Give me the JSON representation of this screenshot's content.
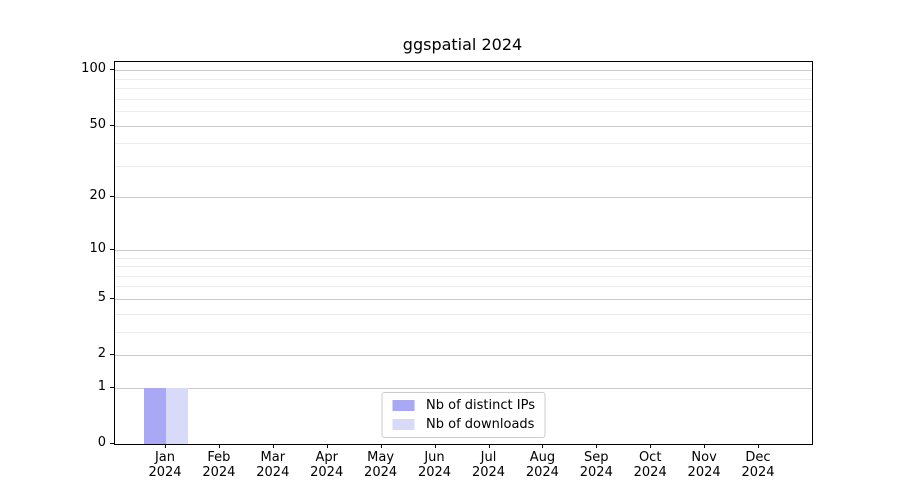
{
  "title": "ggspatial 2024",
  "chart_data": {
    "type": "bar",
    "title": "ggspatial 2024",
    "categories": [
      "Jan",
      "Feb",
      "Mar",
      "Apr",
      "May",
      "Jun",
      "Jul",
      "Aug",
      "Sep",
      "Oct",
      "Nov",
      "Dec"
    ],
    "x_year_label": "2024",
    "series": [
      {
        "name": "Nb of distinct IPs",
        "color": "#a8a8f5",
        "values": [
          1,
          0,
          0,
          0,
          0,
          0,
          0,
          0,
          0,
          0,
          0,
          0
        ]
      },
      {
        "name": "Nb of downloads",
        "color": "#d9d9f9",
        "values": [
          1,
          0,
          0,
          0,
          0,
          0,
          0,
          0,
          0,
          0,
          0,
          0
        ]
      }
    ],
    "xlabel": "",
    "ylabel": "",
    "yscale": "log1p",
    "ylim": [
      0,
      112
    ],
    "y_major_ticks": [
      0,
      1,
      2,
      5,
      10,
      20,
      50,
      100
    ],
    "y_minor_gridlines": [
      3,
      4,
      6,
      7,
      8,
      9,
      30,
      40,
      60,
      70,
      80,
      90
    ],
    "grid": true,
    "legend_position": "lower center",
    "colors": {
      "major_grid": "#cccccc",
      "minor_grid": "#ebebeb",
      "axis": "#000000",
      "text": "#000000",
      "background": "#ffffff"
    }
  }
}
